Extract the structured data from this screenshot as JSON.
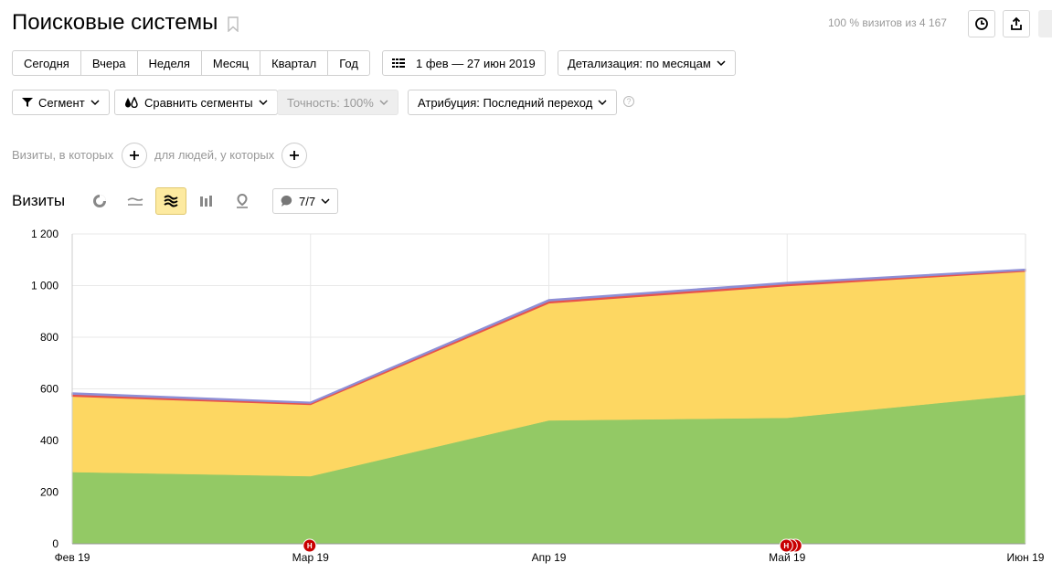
{
  "header": {
    "title": "Поисковые системы",
    "visits_note": "100 % визитов из 4 167"
  },
  "periods": [
    "Сегодня",
    "Вчера",
    "Неделя",
    "Месяц",
    "Квартал",
    "Год"
  ],
  "date_range": "1 фев — 27 июн 2019",
  "detail": "Детализация: по месяцам",
  "toolbar2": {
    "segment": "Сегмент",
    "compare": "Сравнить сегменты",
    "accuracy": "Точность: 100%",
    "attribution": "Атрибуция: Последний переход",
    "help": "?"
  },
  "conditions": {
    "visits_label": "Визиты, в которых",
    "people_label": "для людей, у которых"
  },
  "section": {
    "title": "Визиты",
    "series_count": "7/7"
  },
  "colors": {
    "green": "#93c965",
    "yellow": "#fdd762",
    "red": "#e8534b",
    "blue": "#8e8fd6",
    "marker": "#c80000"
  },
  "icons": [
    "bookmark-icon",
    "history-icon",
    "export-icon",
    "pie-chart-icon",
    "line-chart-icon",
    "area-chart-icon",
    "bar-chart-icon",
    "map-icon",
    "comment-icon"
  ],
  "chart_data": {
    "type": "area",
    "stacked": true,
    "categories": [
      "Фев 19",
      "Мар 19",
      "Апр 19",
      "Май 19",
      "Июн 19"
    ],
    "ylim": [
      0,
      1200
    ],
    "yticks": [
      "0",
      "200",
      "400",
      "600",
      "800",
      "1 000",
      "1 200"
    ],
    "grid": true,
    "series": [
      {
        "color": "#93c965",
        "values": [
          278,
          262,
          478,
          488,
          578
        ]
      },
      {
        "color": "#fdd762",
        "values": [
          294,
          278,
          455,
          512,
          478
        ]
      },
      {
        "color": "#e8534b",
        "values": [
          8,
          5,
          8,
          8,
          4
        ]
      },
      {
        "color": "#8e8fd6",
        "values": [
          4,
          3,
          4,
          4,
          3
        ]
      }
    ],
    "annotations": [
      {
        "x": "Мар 19",
        "label": "Н",
        "count": 1
      },
      {
        "x": "Май 19",
        "label": "Н",
        "count": 3
      }
    ]
  }
}
